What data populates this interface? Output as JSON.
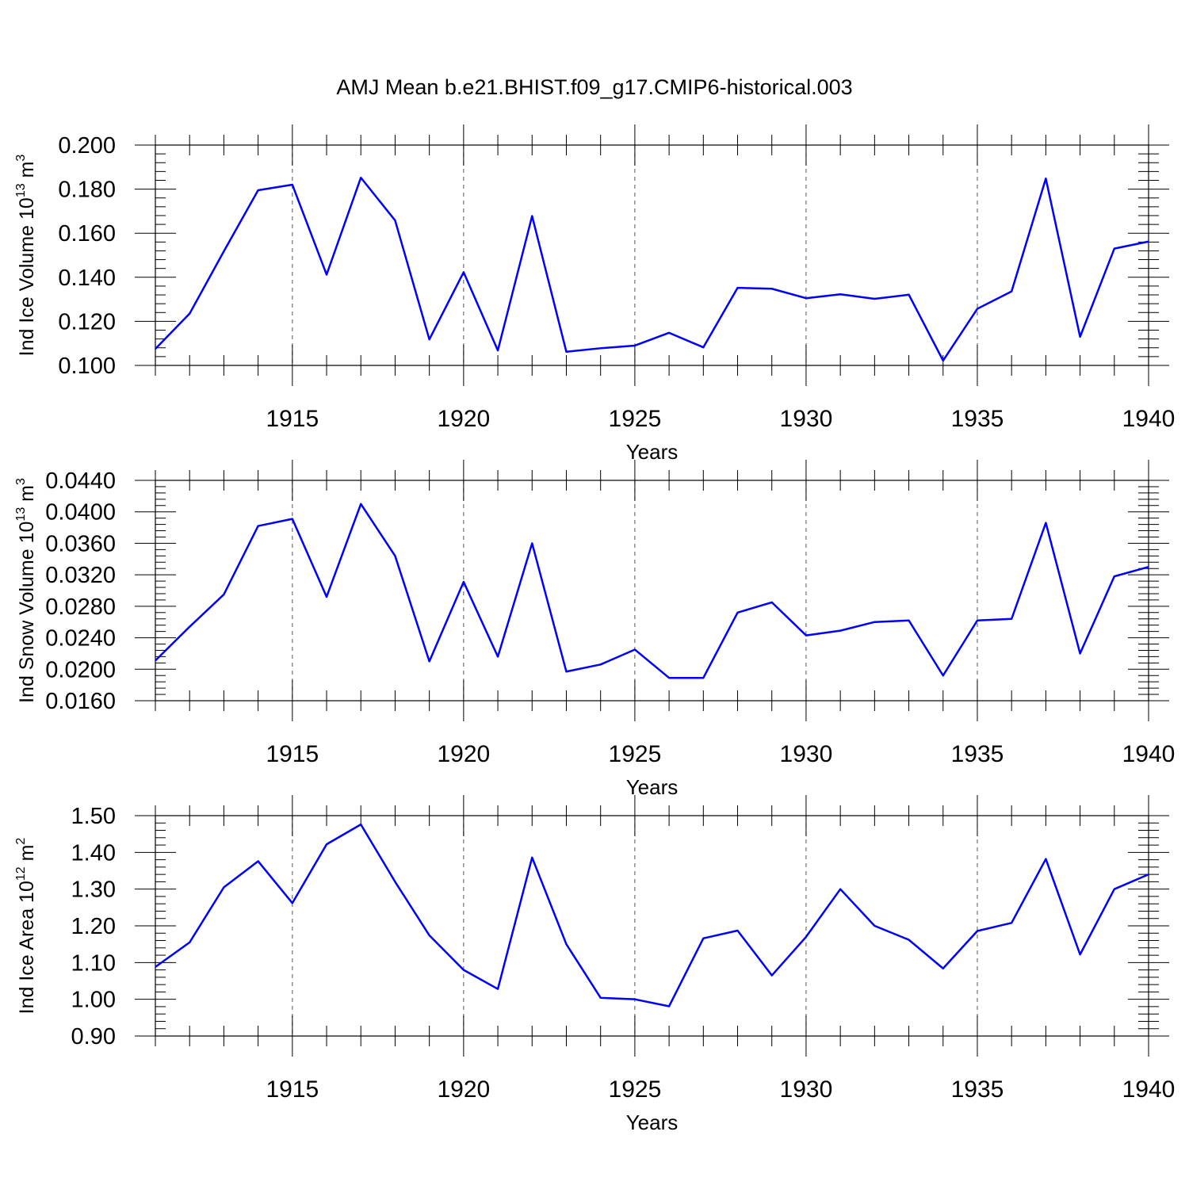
{
  "chart_data": [
    {
      "type": "line",
      "title": "AMJ Mean b.e21.BHIST.f09_g17.CMIP6-historical.003",
      "ylabel": "Ind Ice Volume 10",
      "ylabel_exp": "13",
      "ylabel_unit": " m",
      "ylabel_unit_exp": "3",
      "xlabel": "Years",
      "xlim": [
        1911,
        1940
      ],
      "ylim": [
        0.1,
        0.2
      ],
      "yticks": [
        0.1,
        0.12,
        0.14,
        0.16,
        0.18,
        0.2
      ],
      "ytick_labels": [
        "0.100",
        "0.120",
        "0.140",
        "0.160",
        "0.180",
        "0.200"
      ],
      "xticks": [
        1915,
        1920,
        1925,
        1930,
        1935,
        1940
      ],
      "xtick_labels": [
        "1915",
        "1920",
        "1925",
        "1930",
        "1935",
        "1940"
      ],
      "x": [
        1911,
        1912,
        1913,
        1914,
        1915,
        1916,
        1917,
        1918,
        1919,
        1920,
        1921,
        1922,
        1923,
        1924,
        1925,
        1926,
        1927,
        1928,
        1929,
        1930,
        1931,
        1932,
        1933,
        1934,
        1935,
        1936,
        1937,
        1938,
        1939,
        1940
      ],
      "series": [
        {
          "name": "Ind Ice Volume",
          "color": "#0000ff",
          "values": [
            0.1075,
            0.1235,
            0.1518,
            0.1795,
            0.182,
            0.1412,
            0.1852,
            0.1658,
            0.1118,
            0.1423,
            0.1068,
            0.1678,
            0.1062,
            0.1078,
            0.109,
            0.1148,
            0.1082,
            0.1352,
            0.1348,
            0.1305,
            0.1323,
            0.1302,
            0.1321,
            0.1022,
            0.1257,
            0.1336,
            0.1848,
            0.113,
            0.153,
            0.1562
          ]
        }
      ]
    },
    {
      "type": "line",
      "ylabel": "Ind Snow Volume 10",
      "ylabel_exp": "13",
      "ylabel_unit": " m",
      "ylabel_unit_exp": "3",
      "xlabel": "Years",
      "xlim": [
        1911,
        1940
      ],
      "ylim": [
        0.016,
        0.044
      ],
      "yticks": [
        0.016,
        0.02,
        0.024,
        0.028,
        0.032,
        0.036,
        0.04,
        0.044
      ],
      "ytick_labels": [
        "0.0160",
        "0.0200",
        "0.0240",
        "0.0280",
        "0.0320",
        "0.0360",
        "0.0400",
        "0.0440"
      ],
      "xticks": [
        1915,
        1920,
        1925,
        1930,
        1935,
        1940
      ],
      "xtick_labels": [
        "1915",
        "1920",
        "1925",
        "1930",
        "1935",
        "1940"
      ],
      "x": [
        1911,
        1912,
        1913,
        1914,
        1915,
        1916,
        1917,
        1918,
        1919,
        1920,
        1921,
        1922,
        1923,
        1924,
        1925,
        1926,
        1927,
        1928,
        1929,
        1930,
        1931,
        1932,
        1933,
        1934,
        1935,
        1936,
        1937,
        1938,
        1939,
        1940
      ],
      "series": [
        {
          "name": "Ind Snow Volume",
          "color": "#0000ff",
          "values": [
            0.0211,
            0.0254,
            0.0295,
            0.0382,
            0.0391,
            0.0292,
            0.041,
            0.0344,
            0.021,
            0.0311,
            0.0216,
            0.036,
            0.0197,
            0.0206,
            0.0225,
            0.0189,
            0.0189,
            0.0272,
            0.0285,
            0.0243,
            0.0249,
            0.026,
            0.0262,
            0.0192,
            0.0262,
            0.0264,
            0.0386,
            0.022,
            0.0318,
            0.033
          ]
        }
      ]
    },
    {
      "type": "line",
      "ylabel": "Ind Ice Area 10",
      "ylabel_exp": "12",
      "ylabel_unit": " m",
      "ylabel_unit_exp": "2",
      "xlabel": "Years",
      "xlim": [
        1911,
        1940
      ],
      "ylim": [
        0.9,
        1.5
      ],
      "yticks": [
        0.9,
        1.0,
        1.1,
        1.2,
        1.3,
        1.4,
        1.5
      ],
      "ytick_labels": [
        "0.90",
        "1.00",
        "1.10",
        "1.20",
        "1.30",
        "1.40",
        "1.50"
      ],
      "xticks": [
        1915,
        1920,
        1925,
        1930,
        1935,
        1940
      ],
      "xtick_labels": [
        "1915",
        "1920",
        "1925",
        "1930",
        "1935",
        "1940"
      ],
      "x": [
        1911,
        1912,
        1913,
        1914,
        1915,
        1916,
        1917,
        1918,
        1919,
        1920,
        1921,
        1922,
        1923,
        1924,
        1925,
        1926,
        1927,
        1928,
        1929,
        1930,
        1931,
        1932,
        1933,
        1934,
        1935,
        1936,
        1937,
        1938,
        1939,
        1940
      ],
      "series": [
        {
          "name": "Ind Ice Area",
          "color": "#0000ff",
          "values": [
            1.088,
            1.155,
            1.305,
            1.376,
            1.262,
            1.422,
            1.476,
            1.32,
            1.174,
            1.08,
            1.028,
            1.386,
            1.15,
            1.004,
            1.0,
            0.981,
            1.166,
            1.187,
            1.065,
            1.17,
            1.3,
            1.2,
            1.162,
            1.084,
            1.186,
            1.208,
            1.382,
            1.122,
            1.3,
            1.34
          ]
        }
      ]
    }
  ]
}
